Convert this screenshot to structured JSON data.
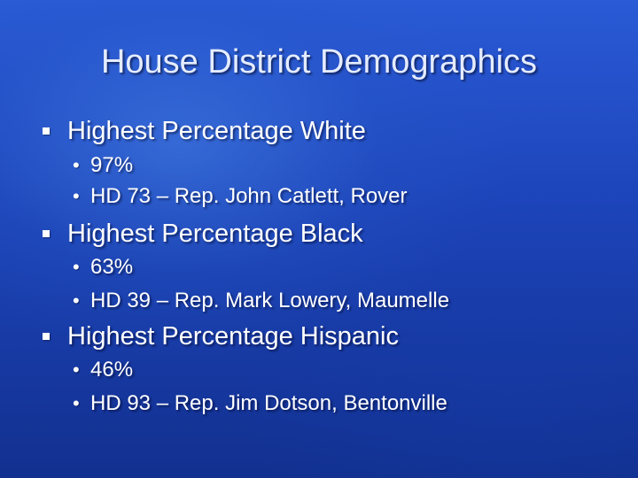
{
  "slide": {
    "title": "House District Demographics",
    "bullet_marker": "square-bullet-icon",
    "sub_marker": "•",
    "sections": [
      {
        "heading": "Highest Percentage White",
        "items": [
          "97%",
          "HD 73 – Rep. John Catlett, Rover"
        ]
      },
      {
        "heading": "Highest Percentage Black",
        "items": [
          "63%",
          "HD 39 – Rep. Mark Lowery, Maumelle"
        ]
      },
      {
        "heading": "Highest Percentage Hispanic",
        "items": [
          "46%",
          "HD 93 – Rep. Jim Dotson, Bentonville"
        ]
      }
    ]
  },
  "colors": {
    "background_top": "#2a5ad6",
    "background_bottom": "#12308f",
    "title": "#e4ecff",
    "text": "#ffffff"
  }
}
